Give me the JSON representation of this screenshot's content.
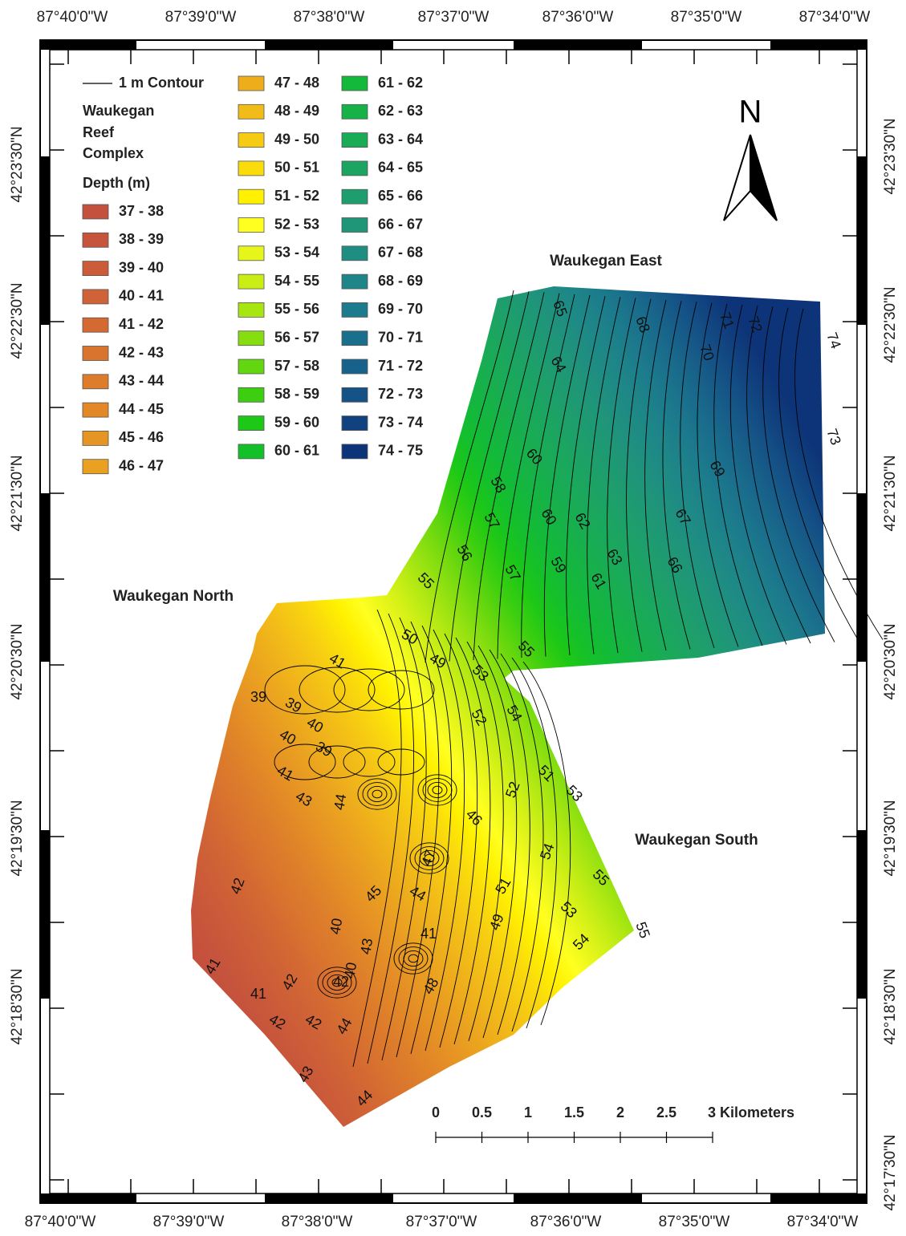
{
  "map": {
    "longitude_labels": [
      "87°40'0\"W",
      "87°39'0\"W",
      "87°38'0\"W",
      "87°37'0\"W",
      "87°36'0\"W",
      "87°35'0\"W",
      "87°34'0\"W"
    ],
    "latitude_labels_left": [
      "42°23'30\"N",
      "42°22'30\"N",
      "42°21'30\"N",
      "42°20'30\"N",
      "42°19'30\"N",
      "42°18'30\"N"
    ],
    "latitude_labels_right": [
      "42°23'30\"N",
      "42°22'30\"N",
      "42°21'30\"N",
      "42°20'30\"N",
      "42°19'30\"N",
      "42°18'30\"N",
      "42°17'30\"N"
    ],
    "legend": {
      "contour": "1 m Contour",
      "title_lines": [
        "Waukegan",
        "Reef",
        "Complex"
      ],
      "depth_title": "Depth (m)",
      "classes": [
        {
          "label": "37 - 38",
          "color": "#c4503e"
        },
        {
          "label": "38 - 39",
          "color": "#c7553b"
        },
        {
          "label": "39 - 40",
          "color": "#cb5b39"
        },
        {
          "label": "40 - 41",
          "color": "#cf6236"
        },
        {
          "label": "41 - 42",
          "color": "#d46a32"
        },
        {
          "label": "42 - 43",
          "color": "#d9742e"
        },
        {
          "label": "43 - 44",
          "color": "#dd7d2b"
        },
        {
          "label": "44 - 45",
          "color": "#e28827"
        },
        {
          "label": "45 - 46",
          "color": "#e69424"
        },
        {
          "label": "46 - 47",
          "color": "#eaa020"
        },
        {
          "label": "47 - 48",
          "color": "#eeae1c"
        },
        {
          "label": "48 - 49",
          "color": "#f2bc18"
        },
        {
          "label": "49 - 50",
          "color": "#f6cb13"
        },
        {
          "label": "50 - 51",
          "color": "#fadc0c"
        },
        {
          "label": "51 - 52",
          "color": "#fff100"
        },
        {
          "label": "52 - 53",
          "color": "#ffff20"
        },
        {
          "label": "53 - 54",
          "color": "#e6f51a"
        },
        {
          "label": "54 - 55",
          "color": "#c8ee16"
        },
        {
          "label": "55 - 56",
          "color": "#a8e612"
        },
        {
          "label": "56 - 57",
          "color": "#86de10"
        },
        {
          "label": "57 - 58",
          "color": "#62d60e"
        },
        {
          "label": "58 - 59",
          "color": "#3ccf10"
        },
        {
          "label": "59 - 60",
          "color": "#1ec816"
        },
        {
          "label": "60 - 61",
          "color": "#14c02a"
        },
        {
          "label": "61 - 62",
          "color": "#13b93a"
        },
        {
          "label": "62 - 63",
          "color": "#16b248"
        },
        {
          "label": "63 - 64",
          "color": "#19ab56"
        },
        {
          "label": "64 - 65",
          "color": "#1ca462"
        },
        {
          "label": "65 - 66",
          "color": "#1e9d6e"
        },
        {
          "label": "66 - 67",
          "color": "#1f9678"
        },
        {
          "label": "67 - 68",
          "color": "#1f8e82"
        },
        {
          "label": "68 - 69",
          "color": "#1e8588"
        },
        {
          "label": "69 - 70",
          "color": "#1c7b8c"
        },
        {
          "label": "70 - 71",
          "color": "#1a6f8c"
        },
        {
          "label": "71 - 72",
          "color": "#18618a"
        },
        {
          "label": "72 - 73",
          "color": "#155286"
        },
        {
          "label": "73 - 74",
          "color": "#11427f"
        },
        {
          "label": "74 - 75",
          "color": "#0d3478"
        }
      ]
    },
    "north_arrow": "N",
    "areas": [
      "Waukegan East",
      "Waukegan North",
      "Waukegan South"
    ],
    "scale_bar": [
      "0",
      "0.5",
      "1",
      "1.5",
      "2",
      "2.5",
      "3 Kilometers"
    ],
    "contour_labels": [
      "65",
      "68",
      "71",
      "72",
      "70",
      "74",
      "64",
      "73",
      "60",
      "58",
      "69",
      "57",
      "60",
      "62",
      "67",
      "56",
      "63",
      "59",
      "57",
      "61",
      "66",
      "55",
      "50",
      "55",
      "49",
      "53",
      "52",
      "54",
      "41",
      "39",
      "39",
      "40",
      "40",
      "39",
      "41",
      "43",
      "44",
      "51",
      "53",
      "52",
      "46",
      "54",
      "55",
      "42",
      "45",
      "44",
      "51",
      "47",
      "53",
      "49",
      "55",
      "54",
      "40",
      "43",
      "41",
      "41",
      "42",
      "42",
      "40",
      "41",
      "42",
      "42",
      "44",
      "43",
      "44",
      "48"
    ]
  }
}
